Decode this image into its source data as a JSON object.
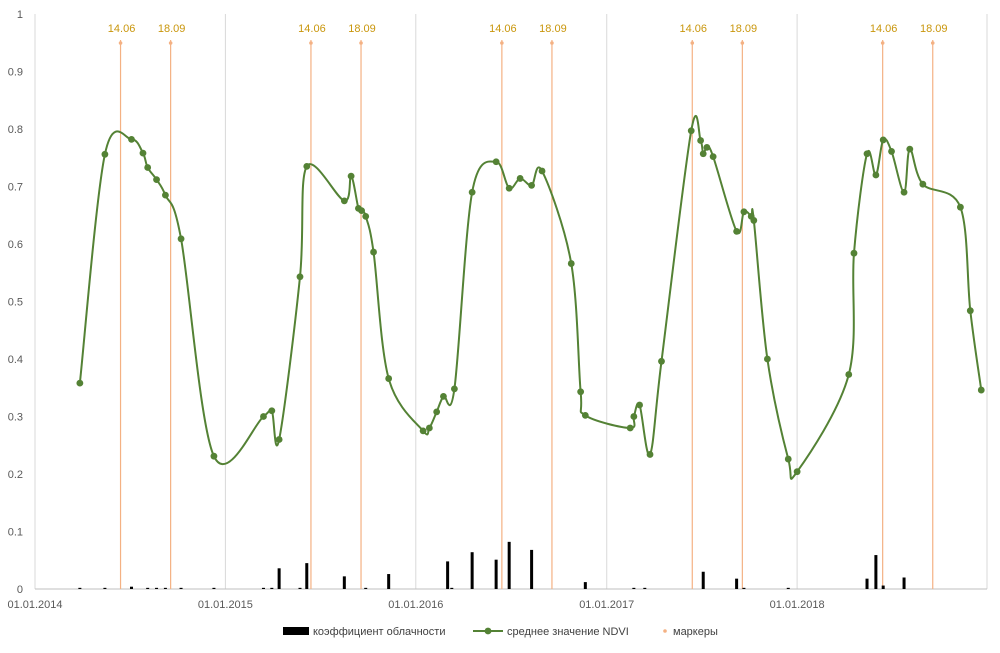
{
  "chart_data": {
    "type": "line",
    "y_axis": {
      "min": 0,
      "max": 1,
      "ticks": [
        "0",
        "0.1",
        "0.2",
        "0.3",
        "0.4",
        "0.5",
        "0.6",
        "0.7",
        "0.8",
        "0.9",
        "1"
      ]
    },
    "x_axis": {
      "min": "2014-01-01",
      "max": "2018-12-31",
      "ticks": [
        {
          "date": "2014-01-01",
          "label": "01.01.2014"
        },
        {
          "date": "2015-01-01",
          "label": "01.01.2015"
        },
        {
          "date": "2016-01-01",
          "label": "01.01.2016"
        },
        {
          "date": "2017-01-01",
          "label": "01.01.2017"
        },
        {
          "date": "2018-01-01",
          "label": "01.01.2018"
        }
      ]
    },
    "grid": {
      "vertical": true,
      "horizontal": false
    },
    "legend_position": "bottom",
    "colors": {
      "ndvi": "#548235",
      "cloud": "#000000",
      "marker": "#f4b183",
      "marker_text": "#c9960c",
      "grid": "#d9d9d9"
    },
    "legend": [
      {
        "key": "cloud",
        "label": "коэффициент облачности"
      },
      {
        "key": "ndvi",
        "label": "среднее значение NDVI"
      },
      {
        "key": "marker",
        "label": "маркеры"
      }
    ],
    "markers": [
      {
        "date": "2014-06-14",
        "label": "14.06"
      },
      {
        "date": "2014-09-18",
        "label": "18.09"
      },
      {
        "date": "2015-06-14",
        "label": "14.06"
      },
      {
        "date": "2015-09-18",
        "label": "18.09"
      },
      {
        "date": "2016-06-14",
        "label": "14.06"
      },
      {
        "date": "2016-09-18",
        "label": "18.09"
      },
      {
        "date": "2017-06-14",
        "label": "14.06"
      },
      {
        "date": "2017-09-18",
        "label": "18.09"
      },
      {
        "date": "2018-06-14",
        "label": "14.06"
      },
      {
        "date": "2018-09-18",
        "label": "18.09"
      }
    ],
    "series": [
      {
        "key": "ndvi",
        "name": "среднее значение NDVI",
        "type": "line",
        "points": [
          [
            "2014-03-28",
            0.358
          ],
          [
            "2014-05-15",
            0.756
          ],
          [
            "2014-07-05",
            0.782
          ],
          [
            "2014-07-27",
            0.758
          ],
          [
            "2014-08-05",
            0.733
          ],
          [
            "2014-08-22",
            0.712
          ],
          [
            "2014-09-08",
            0.685
          ],
          [
            "2014-10-08",
            0.609
          ],
          [
            "2014-12-10",
            0.231
          ],
          [
            "2015-03-15",
            0.3
          ],
          [
            "2015-03-31",
            0.31
          ],
          [
            "2015-04-14",
            0.26
          ],
          [
            "2015-05-24",
            0.543
          ],
          [
            "2015-06-06",
            0.735
          ],
          [
            "2015-08-17",
            0.675
          ],
          [
            "2015-08-30",
            0.718
          ],
          [
            "2015-09-13",
            0.662
          ],
          [
            "2015-09-19",
            0.658
          ],
          [
            "2015-09-27",
            0.648
          ],
          [
            "2015-10-12",
            0.586
          ],
          [
            "2015-11-10",
            0.366
          ],
          [
            "2016-01-15",
            0.275
          ],
          [
            "2016-01-27",
            0.28
          ],
          [
            "2016-02-10",
            0.308
          ],
          [
            "2016-02-23",
            0.335
          ],
          [
            "2016-03-15",
            0.348
          ],
          [
            "2016-04-18",
            0.69
          ],
          [
            "2016-06-03",
            0.743
          ],
          [
            "2016-06-28",
            0.697
          ],
          [
            "2016-07-19",
            0.714
          ],
          [
            "2016-08-10",
            0.702
          ],
          [
            "2016-08-30",
            0.727
          ],
          [
            "2016-10-25",
            0.566
          ],
          [
            "2016-11-12",
            0.343
          ],
          [
            "2016-11-21",
            0.302
          ],
          [
            "2017-02-15",
            0.28
          ],
          [
            "2017-02-22",
            0.3
          ],
          [
            "2017-03-05",
            0.32
          ],
          [
            "2017-03-25",
            0.234
          ],
          [
            "2017-04-16",
            0.396
          ],
          [
            "2017-06-12",
            0.797
          ],
          [
            "2017-06-30",
            0.78
          ],
          [
            "2017-07-05",
            0.757
          ],
          [
            "2017-07-12",
            0.768
          ],
          [
            "2017-07-24",
            0.752
          ],
          [
            "2017-09-07",
            0.622
          ],
          [
            "2017-09-21",
            0.656
          ],
          [
            "2017-10-05",
            0.648
          ],
          [
            "2017-10-10",
            0.641
          ],
          [
            "2017-11-05",
            0.4
          ],
          [
            "2017-12-15",
            0.226
          ],
          [
            "2018-01-01",
            0.204
          ],
          [
            "2018-04-10",
            0.373
          ],
          [
            "2018-04-20",
            0.584
          ],
          [
            "2018-05-15",
            0.757
          ],
          [
            "2018-06-01",
            0.72
          ],
          [
            "2018-06-15",
            0.781
          ],
          [
            "2018-07-01",
            0.761
          ],
          [
            "2018-07-25",
            0.69
          ],
          [
            "2018-08-05",
            0.765
          ],
          [
            "2018-08-30",
            0.704
          ],
          [
            "2018-11-10",
            0.664
          ],
          [
            "2018-11-29",
            0.484
          ],
          [
            "2018-12-20",
            0.346
          ]
        ]
      },
      {
        "key": "cloud",
        "name": "коэффициент облачности",
        "type": "bar",
        "points": [
          [
            "2014-03-28",
            0.002
          ],
          [
            "2014-05-15",
            0.002
          ],
          [
            "2014-07-05",
            0.004
          ],
          [
            "2014-08-05",
            0.002
          ],
          [
            "2014-08-22",
            0.002
          ],
          [
            "2014-09-08",
            0.002
          ],
          [
            "2014-10-08",
            0.002
          ],
          [
            "2014-12-10",
            0.002
          ],
          [
            "2015-03-15",
            0.002
          ],
          [
            "2015-03-31",
            0.002
          ],
          [
            "2015-04-14",
            0.036
          ],
          [
            "2015-05-24",
            0.002
          ],
          [
            "2015-06-06",
            0.045
          ],
          [
            "2015-08-17",
            0.022
          ],
          [
            "2015-09-27",
            0.002
          ],
          [
            "2015-11-10",
            0.026
          ],
          [
            "2016-03-02",
            0.048
          ],
          [
            "2016-03-10",
            0.002
          ],
          [
            "2016-04-18",
            0.064
          ],
          [
            "2016-06-03",
            0.051
          ],
          [
            "2016-06-28",
            0.082
          ],
          [
            "2016-08-10",
            0.068
          ],
          [
            "2016-11-21",
            0.012
          ],
          [
            "2017-02-22",
            0.002
          ],
          [
            "2017-03-15",
            0.002
          ],
          [
            "2017-07-05",
            0.03
          ],
          [
            "2017-09-07",
            0.018
          ],
          [
            "2017-09-21",
            0.002
          ],
          [
            "2017-12-15",
            0.002
          ],
          [
            "2018-05-15",
            0.018
          ],
          [
            "2018-06-01",
            0.059
          ],
          [
            "2018-06-15",
            0.006
          ],
          [
            "2018-07-25",
            0.02
          ]
        ]
      }
    ]
  }
}
